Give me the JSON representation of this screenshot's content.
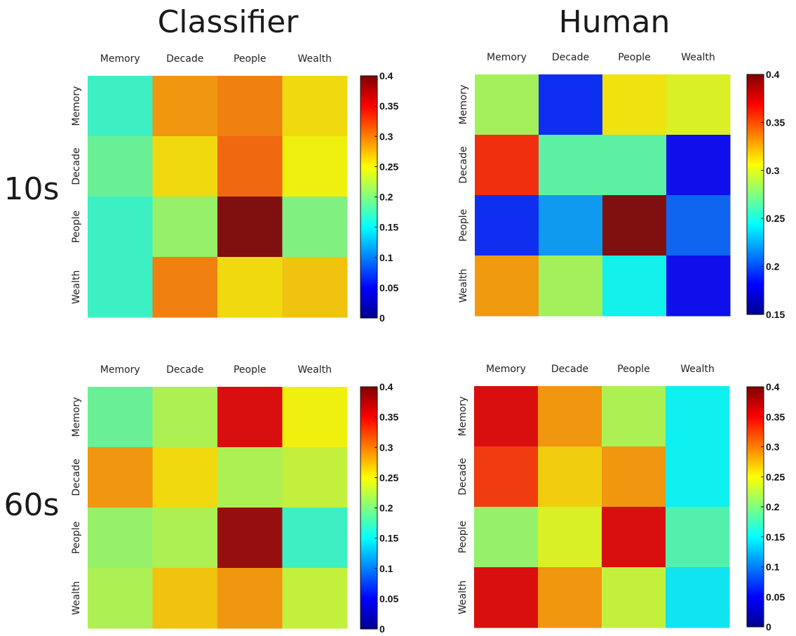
{
  "figure": {
    "column_titles": [
      "Classifier",
      "Human"
    ],
    "row_titles": [
      "10s",
      "60s"
    ]
  },
  "chart_data": [
    {
      "type": "heatmap",
      "panel": "10s-classifier",
      "x_categories": [
        "Memory",
        "Decade",
        "People",
        "Wealth"
      ],
      "y_categories": [
        "Memory",
        "Decade",
        "People",
        "Wealth"
      ],
      "values": [
        [
          0.17,
          0.29,
          0.3,
          0.26
        ],
        [
          0.19,
          0.26,
          0.31,
          0.25
        ],
        [
          0.17,
          0.21,
          0.4,
          0.2
        ],
        [
          0.17,
          0.3,
          0.26,
          0.27
        ]
      ],
      "colorbar": {
        "min": 0,
        "max": 0.4,
        "ticks": [
          "0.4",
          "0.35",
          "0.3",
          "0.25",
          "0.2",
          "0.15",
          "0.1",
          "0.05",
          "0"
        ]
      }
    },
    {
      "type": "heatmap",
      "panel": "10s-human",
      "x_categories": [
        "Memory",
        "Decade",
        "People",
        "Wealth"
      ],
      "y_categories": [
        "Memory",
        "Decade",
        "People",
        "Wealth"
      ],
      "values": [
        [
          0.285,
          0.19,
          0.31,
          0.3
        ],
        [
          0.36,
          0.265,
          0.265,
          0.18
        ],
        [
          0.19,
          0.22,
          0.4,
          0.205
        ],
        [
          0.33,
          0.285,
          0.245,
          0.18
        ]
      ],
      "colorbar": {
        "min": 0.15,
        "max": 0.4,
        "ticks": [
          "0.4",
          "0.35",
          "0.3",
          "0.25",
          "0.2",
          "0.15"
        ]
      }
    },
    {
      "type": "heatmap",
      "panel": "60s-classifier",
      "x_categories": [
        "Memory",
        "Decade",
        "People",
        "Wealth"
      ],
      "y_categories": [
        "Memory",
        "Decade",
        "People",
        "Wealth"
      ],
      "values": [
        [
          0.19,
          0.22,
          0.36,
          0.25
        ],
        [
          0.29,
          0.26,
          0.22,
          0.23
        ],
        [
          0.21,
          0.22,
          0.39,
          0.17
        ],
        [
          0.22,
          0.27,
          0.29,
          0.23
        ]
      ],
      "colorbar": {
        "min": 0,
        "max": 0.4,
        "ticks": [
          "0.4",
          "0.35",
          "0.3",
          "0.25",
          "0.2",
          "0.15",
          "0.1",
          "0.05",
          "0"
        ]
      }
    },
    {
      "type": "heatmap",
      "panel": "60s-human",
      "x_categories": [
        "Memory",
        "Decade",
        "People",
        "Wealth"
      ],
      "y_categories": [
        "Memory",
        "Decade",
        "People",
        "Wealth"
      ],
      "values": [
        [
          0.36,
          0.29,
          0.22,
          0.15
        ],
        [
          0.33,
          0.265,
          0.29,
          0.15
        ],
        [
          0.21,
          0.24,
          0.36,
          0.18
        ],
        [
          0.36,
          0.29,
          0.23,
          0.145
        ]
      ],
      "colorbar": {
        "min": 0,
        "max": 0.4,
        "ticks": [
          "0.4",
          "0.35",
          "0.3",
          "0.25",
          "0.2",
          "0.15",
          "0.1",
          "0.05",
          "0"
        ]
      }
    }
  ]
}
